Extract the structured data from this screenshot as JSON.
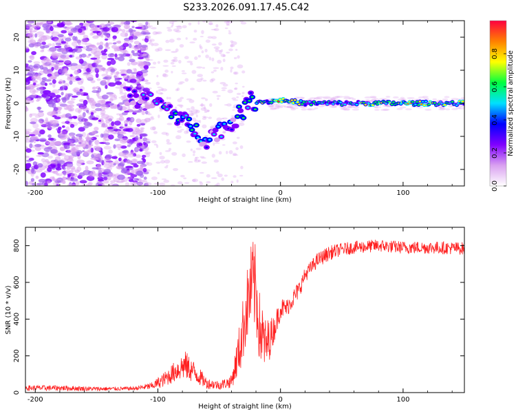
{
  "figure_title": "S233.2026.091.17.45.C42",
  "chart_data": [
    {
      "type": "heatmap",
      "title": "S233.2026.091.17.45.C42",
      "xlabel": "Height of straight line (km)",
      "ylabel": "Frequency (Hz)",
      "xlim": [
        -208,
        150
      ],
      "ylim": [
        -25,
        25
      ],
      "x_ticks": [
        -200,
        -100,
        0,
        100
      ],
      "y_ticks": [
        -20,
        -10,
        0,
        10,
        20
      ],
      "x_tick_labels": [
        "-200",
        "-100",
        "0",
        "100"
      ],
      "y_tick_labels": [
        "-20",
        "-10",
        "0",
        "10",
        "20"
      ],
      "colorbar": {
        "label": "Normalized spectral amplitude",
        "range": [
          0,
          1
        ],
        "ticks": [
          0.0,
          0.2,
          0.4,
          0.6,
          0.8
        ],
        "tick_labels": [
          "0.0",
          "0.2",
          "0.4",
          "0.6",
          "0.8"
        ],
        "colormap": [
          "#ffffff",
          "#d9a0f0",
          "#8000ff",
          "#0000ff",
          "#00e0ff",
          "#00ff40",
          "#ffff00",
          "#ff8000",
          "#ff0040"
        ]
      },
      "ridge": {
        "x": [
          -125,
          -110,
          -100,
          -90,
          -80,
          -70,
          -60,
          -50,
          -40,
          -30,
          -25,
          -20,
          -10,
          0,
          10,
          20,
          50,
          100,
          150
        ],
        "freq": [
          2,
          1,
          0,
          -2,
          -5,
          -8,
          -11,
          -8,
          -6,
          -2,
          1,
          0.5,
          0.5,
          1,
          0.5,
          0,
          0,
          0,
          0
        ],
        "amplitude": [
          0.3,
          0.4,
          0.35,
          0.45,
          0.5,
          0.45,
          0.4,
          0.45,
          0.4,
          0.5,
          0.6,
          0.6,
          0.55,
          0.9,
          0.7,
          0.5,
          0.5,
          0.7,
          0.6
        ]
      }
    },
    {
      "type": "line",
      "xlabel": "Height of straight line (km)",
      "ylabel": "SNR (10 * v/v)",
      "xlim": [
        -208,
        150
      ],
      "ylim": [
        0,
        900
      ],
      "x_ticks": [
        -200,
        -100,
        0,
        100
      ],
      "y_ticks": [
        0,
        200,
        400,
        600,
        800
      ],
      "x_tick_labels": [
        "-200",
        "-100",
        "0",
        "100"
      ],
      "y_tick_labels": [
        "0",
        "200",
        "400",
        "600",
        "800"
      ],
      "series": [
        {
          "name": "SNR",
          "color": "#ff2020",
          "x": [
            -208,
            -180,
            -150,
            -120,
            -105,
            -95,
            -85,
            -78,
            -70,
            -60,
            -50,
            -40,
            -33,
            -28,
            -23,
            -20,
            -17,
            -12,
            -5,
            0,
            5,
            10,
            15,
            20,
            30,
            40,
            50,
            60,
            80,
            100,
            120,
            150
          ],
          "y": [
            25,
            25,
            20,
            22,
            35,
            70,
            120,
            150,
            110,
            50,
            40,
            60,
            250,
            450,
            600,
            550,
            350,
            250,
            350,
            460,
            460,
            510,
            560,
            640,
            720,
            760,
            780,
            790,
            800,
            790,
            790,
            785
          ],
          "noise": [
            15,
            15,
            12,
            10,
            20,
            40,
            60,
            80,
            60,
            30,
            25,
            35,
            150,
            200,
            250,
            250,
            200,
            150,
            70,
            60,
            50,
            50,
            50,
            40,
            40,
            40,
            35,
            35,
            35,
            35,
            35,
            35
          ]
        }
      ]
    }
  ]
}
